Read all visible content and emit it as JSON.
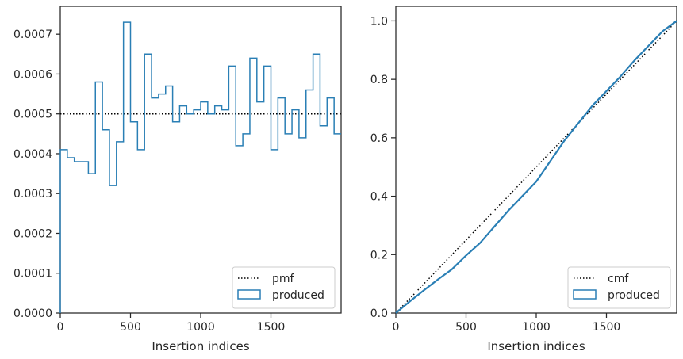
{
  "colors": {
    "produced": "#2a7fb5",
    "reference": "#000000",
    "axis": "#262626"
  },
  "chart_data": [
    {
      "type": "step",
      "xlabel": "Insertion indices",
      "ylabel": "",
      "xlim": [
        0,
        2000
      ],
      "ylim": [
        0,
        0.00077
      ],
      "xticks": [
        "0",
        "500",
        "1000",
        "1500"
      ],
      "xtick_values": [
        0,
        500,
        1000,
        1500
      ],
      "yticks": [
        "0.0000",
        "0.0001",
        "0.0002",
        "0.0003",
        "0.0004",
        "0.0005",
        "0.0006",
        "0.0007"
      ],
      "ytick_values": [
        0,
        0.0001,
        0.0002,
        0.0003,
        0.0004,
        0.0005,
        0.0006,
        0.0007
      ],
      "bin_edges": [
        0,
        50,
        100,
        200,
        250,
        300,
        350,
        400,
        450,
        500,
        550,
        600,
        650,
        700,
        750,
        800,
        850,
        900,
        950,
        1000,
        1050,
        1100,
        1150,
        1200,
        1250,
        1300,
        1350,
        1400,
        1450,
        1500,
        1550,
        1600,
        1650,
        1700,
        1750,
        1800,
        1850,
        1900,
        1950,
        2000
      ],
      "series": [
        {
          "name": "pmf",
          "style": "dotted",
          "values": [
            0.0005
          ]
        },
        {
          "name": "produced",
          "style": "step",
          "values": [
            0.00041,
            0.00039,
            0.00038,
            0.00035,
            0.00058,
            0.00046,
            0.00032,
            0.00043,
            0.00073,
            0.00048,
            0.00041,
            0.00065,
            0.00054,
            0.00055,
            0.00057,
            0.00048,
            0.00052,
            0.0005,
            0.00051,
            0.00053,
            0.0005,
            0.00052,
            0.00051,
            0.00062,
            0.00042,
            0.00045,
            0.00064,
            0.00053,
            0.00062,
            0.00041,
            0.00054,
            0.00045,
            0.00051,
            0.00044,
            0.00056,
            0.00065,
            0.00047,
            0.00054,
            0.00045
          ]
        }
      ],
      "legend": {
        "location": "lower right",
        "entries": [
          "pmf",
          "produced"
        ]
      }
    },
    {
      "type": "line",
      "xlabel": "Insertion indices",
      "ylabel": "",
      "xlim": [
        0,
        2000
      ],
      "ylim": [
        0,
        1.05
      ],
      "xticks": [
        "0",
        "500",
        "1000",
        "1500"
      ],
      "xtick_values": [
        0,
        500,
        1000,
        1500
      ],
      "yticks": [
        "0.0",
        "0.2",
        "0.4",
        "0.6",
        "0.8",
        "1.0"
      ],
      "ytick_values": [
        0,
        0.2,
        0.4,
        0.6,
        0.8,
        1.0
      ],
      "series": [
        {
          "name": "cmf",
          "style": "dotted",
          "x": [
            0,
            2000
          ],
          "y": [
            0,
            1.0
          ]
        },
        {
          "name": "produced",
          "style": "line",
          "x": [
            0,
            100,
            200,
            300,
            400,
            500,
            600,
            700,
            800,
            900,
            1000,
            1100,
            1200,
            1300,
            1400,
            1500,
            1600,
            1700,
            1800,
            1900,
            2000
          ],
          "y": [
            0,
            0.04,
            0.078,
            0.115,
            0.15,
            0.197,
            0.24,
            0.295,
            0.35,
            0.4,
            0.45,
            0.52,
            0.59,
            0.65,
            0.71,
            0.76,
            0.81,
            0.865,
            0.915,
            0.965,
            1.0
          ]
        }
      ],
      "legend": {
        "location": "lower right",
        "entries": [
          "cmf",
          "produced"
        ]
      }
    }
  ]
}
